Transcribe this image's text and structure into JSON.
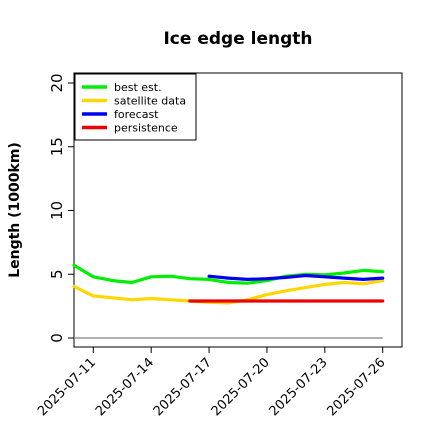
{
  "chart_data": {
    "type": "line",
    "title": "Ice edge length",
    "xlabel": "",
    "ylabel": "Length (1000km)",
    "ylim": [
      0,
      20
    ],
    "yticks": [
      0,
      5,
      10,
      15,
      20
    ],
    "xlim": [
      "2025-07-10",
      "2025-07-27"
    ],
    "xticks": [
      "2025-07-11",
      "2025-07-14",
      "2025-07-17",
      "2025-07-20",
      "2025-07-23",
      "2025-07-26"
    ],
    "highlight_tick": "2025-07-17",
    "highlight_color": "#1a7d1a",
    "reference_line": {
      "y": 0,
      "x_start": "2025-07-10",
      "x_end": "2025-07-26",
      "color": "#808080"
    },
    "legend_position": "top-left",
    "grid": false,
    "series": [
      {
        "name": "best est.",
        "color": "#00ee00",
        "x": [
          "2025-07-10",
          "2025-07-11",
          "2025-07-12",
          "2025-07-13",
          "2025-07-14",
          "2025-07-15",
          "2025-07-16",
          "2025-07-17",
          "2025-07-18",
          "2025-07-19",
          "2025-07-20",
          "2025-07-21",
          "2025-07-22",
          "2025-07-23",
          "2025-07-24",
          "2025-07-25",
          "2025-07-26"
        ],
        "values": [
          5.7,
          4.8,
          4.5,
          4.35,
          4.8,
          4.85,
          4.65,
          4.6,
          4.35,
          4.3,
          4.5,
          4.85,
          5.0,
          4.95,
          5.1,
          5.3,
          5.2
        ]
      },
      {
        "name": "satellite data",
        "color": "#ffd700",
        "x": [
          "2025-07-10",
          "2025-07-11",
          "2025-07-12",
          "2025-07-13",
          "2025-07-14",
          "2025-07-15",
          "2025-07-16",
          "2025-07-17",
          "2025-07-18",
          "2025-07-19",
          "2025-07-20",
          "2025-07-21",
          "2025-07-22",
          "2025-07-23",
          "2025-07-24",
          "2025-07-25",
          "2025-07-26"
        ],
        "values": [
          4.05,
          3.3,
          3.15,
          3.0,
          3.1,
          3.0,
          2.9,
          2.8,
          2.75,
          3.0,
          3.4,
          3.7,
          3.95,
          4.2,
          4.35,
          4.25,
          4.5
        ]
      },
      {
        "name": "forecast",
        "color": "#0000ee",
        "x": [
          "2025-07-17",
          "2025-07-18",
          "2025-07-19",
          "2025-07-20",
          "2025-07-21",
          "2025-07-22",
          "2025-07-23",
          "2025-07-24",
          "2025-07-25",
          "2025-07-26"
        ],
        "values": [
          4.85,
          4.7,
          4.6,
          4.65,
          4.75,
          4.9,
          4.8,
          4.7,
          4.6,
          4.7
        ]
      },
      {
        "name": "persistence",
        "color": "#ee0000",
        "x": [
          "2025-07-16",
          "2025-07-26"
        ],
        "values": [
          2.9,
          2.9
        ]
      }
    ]
  }
}
